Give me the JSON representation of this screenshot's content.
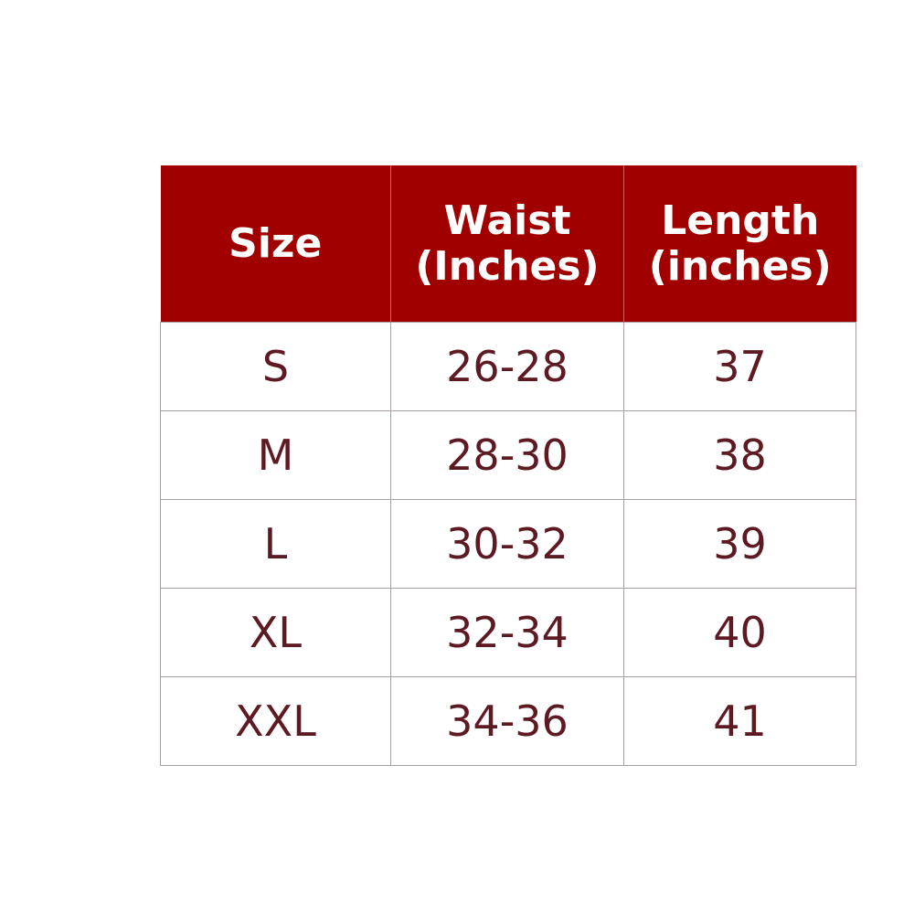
{
  "table": {
    "header_color": "#a00000",
    "text_color": "#5e1a22",
    "headers": [
      {
        "line1": "Size",
        "line2": ""
      },
      {
        "line1": "Waist",
        "line2": "(Inches)"
      },
      {
        "line1": "Length",
        "line2": "(inches)"
      }
    ],
    "rows": [
      [
        "S",
        "26-28",
        "37"
      ],
      [
        "M",
        "28-30",
        "38"
      ],
      [
        "L",
        "30-32",
        "39"
      ],
      [
        "XL",
        "32-34",
        "40"
      ],
      [
        "XXL",
        "34-36",
        "41"
      ]
    ]
  }
}
